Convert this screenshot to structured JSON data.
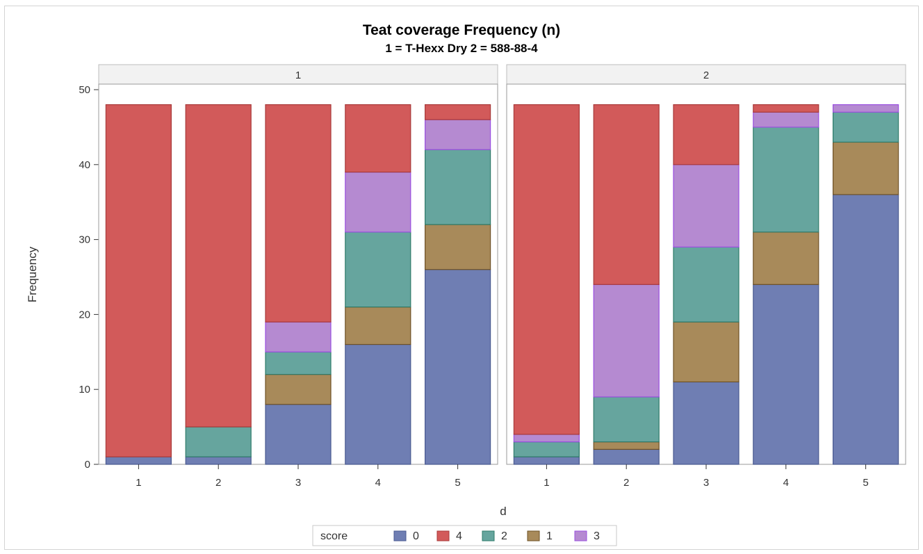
{
  "chart_data": {
    "type": "bar",
    "stacked": true,
    "title": "Teat coverage Frequency (n)",
    "subtitle": "1 = T-Hexx Dry 2 = 588-88-4",
    "xlabel": "d",
    "ylabel": "Frequency",
    "ylim": [
      0,
      50
    ],
    "yticks": [
      0,
      10,
      20,
      30,
      40,
      50
    ],
    "grid": false,
    "legend": {
      "title": "score",
      "position": "bottom",
      "order": [
        "0",
        "4",
        "2",
        "1",
        "3"
      ]
    },
    "stack_order": [
      "0",
      "1",
      "2",
      "3",
      "4"
    ],
    "colors": {
      "0": "#6f7eb3",
      "1": "#a88a5a",
      "2": "#66a59e",
      "3": "#b58ad1",
      "4": "#d25a5a"
    },
    "edge_colors": {
      "0": "#4a5a90",
      "1": "#6e5126",
      "2": "#2f7b6a",
      "3": "#9a4fe0",
      "4": "#a83a3a"
    },
    "panels": [
      {
        "label": "1",
        "categories": [
          "1",
          "2",
          "3",
          "4",
          "5"
        ],
        "series": [
          {
            "name": "0",
            "values": [
              1,
              1,
              8,
              16,
              26
            ]
          },
          {
            "name": "1",
            "values": [
              0,
              0,
              4,
              5,
              6
            ]
          },
          {
            "name": "2",
            "values": [
              0,
              4,
              3,
              10,
              10
            ]
          },
          {
            "name": "3",
            "values": [
              0,
              0,
              4,
              8,
              4
            ]
          },
          {
            "name": "4",
            "values": [
              47,
              43,
              29,
              9,
              2
            ]
          }
        ]
      },
      {
        "label": "2",
        "categories": [
          "1",
          "2",
          "3",
          "4",
          "5"
        ],
        "series": [
          {
            "name": "0",
            "values": [
              1,
              2,
              11,
              24,
              36
            ]
          },
          {
            "name": "1",
            "values": [
              0,
              1,
              8,
              7,
              7
            ]
          },
          {
            "name": "2",
            "values": [
              2,
              6,
              10,
              14,
              4
            ]
          },
          {
            "name": "3",
            "values": [
              1,
              15,
              11,
              2,
              1
            ]
          },
          {
            "name": "4",
            "values": [
              44,
              24,
              8,
              1,
              0
            ]
          }
        ]
      }
    ]
  }
}
